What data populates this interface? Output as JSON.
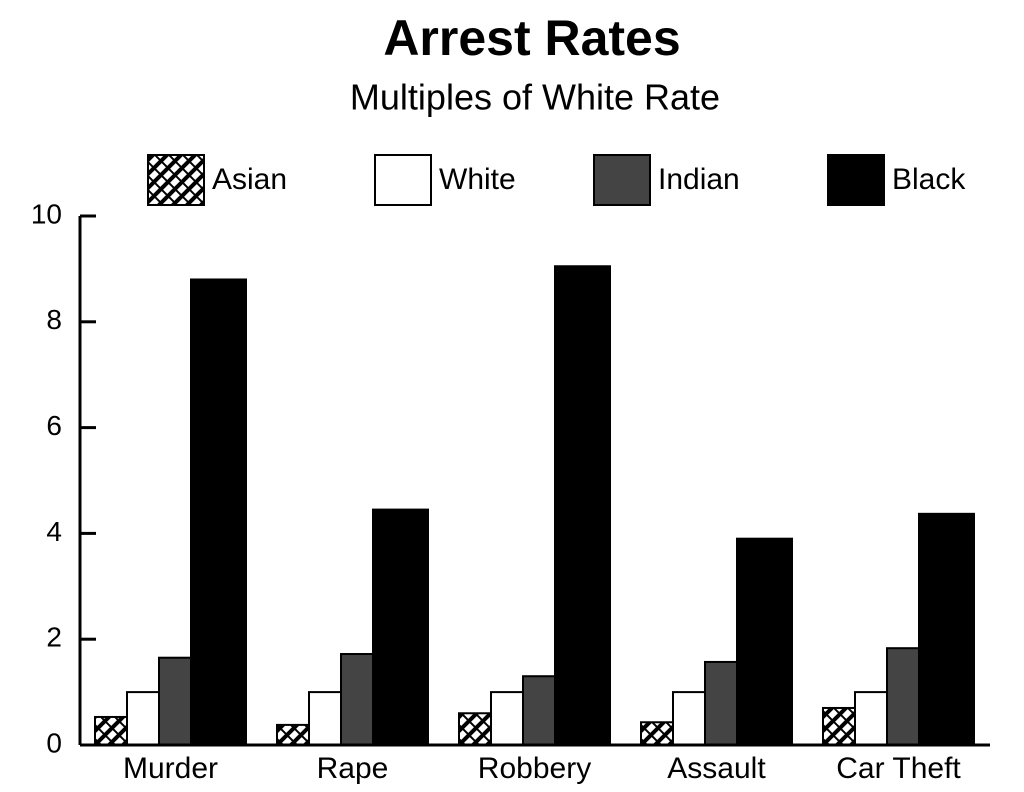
{
  "chart_data": {
    "type": "bar",
    "title": "Arrest Rates",
    "subtitle": "Multiples of White Rate",
    "categories": [
      "Murder",
      "Rape",
      "Robbery",
      "Assault",
      "Car Theft"
    ],
    "series": [
      {
        "name": "Asian",
        "color": "#000000",
        "pattern": "hatch",
        "values": [
          0.53,
          0.38,
          0.6,
          0.43,
          0.7
        ]
      },
      {
        "name": "White",
        "color": "#ffffff",
        "values": [
          1,
          1,
          1,
          1,
          1
        ]
      },
      {
        "name": "Indian",
        "color": "#444444",
        "values": [
          1.65,
          1.72,
          1.3,
          1.57,
          1.83
        ]
      },
      {
        "name": "Black",
        "color": "#000000",
        "values": [
          8.8,
          4.45,
          9.05,
          3.9,
          4.37
        ]
      }
    ],
    "ylim": [
      0,
      10
    ],
    "yticks": [
      0,
      2,
      4,
      6,
      8,
      10
    ],
    "legend": "top"
  }
}
